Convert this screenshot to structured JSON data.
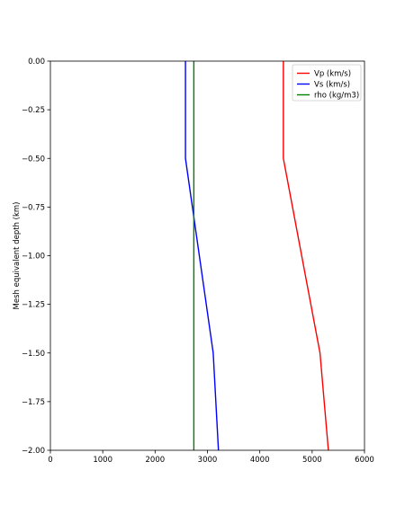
{
  "chart_data": {
    "type": "line",
    "title": "",
    "xlabel": "",
    "ylabel": "Mesh equivalent depth (km)",
    "xlim": [
      0,
      6000
    ],
    "ylim": [
      -2.0,
      0.0
    ],
    "xticks": [
      0,
      1000,
      2000,
      3000,
      4000,
      5000,
      6000
    ],
    "xtick_labels": [
      "0",
      "1000",
      "2000",
      "3000",
      "4000",
      "5000",
      "6000"
    ],
    "yticks": [
      0.0,
      -0.25,
      -0.5,
      -0.75,
      -1.0,
      -1.25,
      -1.5,
      -1.75,
      -2.0
    ],
    "ytick_labels": [
      "0.00",
      "−0.25",
      "−0.50",
      "−0.75",
      "−1.00",
      "−1.25",
      "−1.50",
      "−1.75",
      "−2.00"
    ],
    "grid": false,
    "legend_position": "top-right",
    "series": [
      {
        "name": "Vp (km/s)",
        "color": "#ff0000",
        "points": [
          {
            "x": 4450,
            "y": 0.0
          },
          {
            "x": 4450,
            "y": -0.5
          },
          {
            "x": 5150,
            "y": -1.5
          },
          {
            "x": 5310,
            "y": -2.0
          }
        ]
      },
      {
        "name": "Vs (km/s)",
        "color": "#0000ff",
        "points": [
          {
            "x": 2580,
            "y": 0.0
          },
          {
            "x": 2580,
            "y": -0.5
          },
          {
            "x": 3110,
            "y": -1.5
          },
          {
            "x": 3210,
            "y": -2.0
          }
        ]
      },
      {
        "name": "rho (kg/m3)",
        "color": "#008000",
        "points": [
          {
            "x": 2740,
            "y": 0.0
          },
          {
            "x": 2740,
            "y": -2.0
          }
        ]
      }
    ]
  }
}
